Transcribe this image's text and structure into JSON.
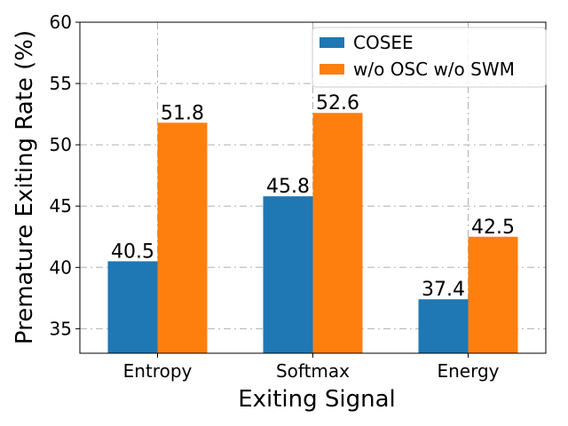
{
  "chart_data": {
    "type": "bar",
    "title": "",
    "xlabel": "Exiting Signal",
    "ylabel": "Premature Exiting Rate (%)",
    "categories": [
      "Entropy",
      "Softmax",
      "Energy"
    ],
    "series": [
      {
        "name": "COSEE",
        "color": "#1f77b4",
        "values": [
          40.5,
          45.8,
          37.4
        ],
        "labels": [
          "40.5",
          "45.8",
          "37.4"
        ]
      },
      {
        "name": "w/o OSC w/o SWM",
        "color": "#ff7f0e",
        "values": [
          51.8,
          52.6,
          42.5
        ],
        "labels": [
          "51.8",
          "52.6",
          "42.5"
        ]
      }
    ],
    "ylim": [
      33,
      60
    ],
    "yticks": [
      35,
      40,
      45,
      50,
      55,
      60
    ],
    "ytick_labels": [
      "35",
      "40",
      "45",
      "50",
      "55",
      "60"
    ],
    "grid": true,
    "legend_position": "top-right"
  }
}
